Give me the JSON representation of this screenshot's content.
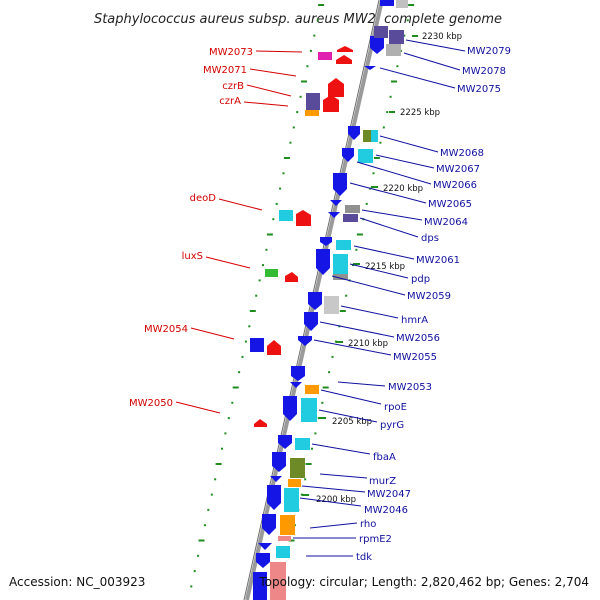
{
  "title": "Staphylococcus aureus subsp. aureus MW2, complete genome",
  "footer": {
    "accession": "Accession: NC_003923",
    "summary": "Topology: circular; Length: 2,820,462 bp; Genes: 2,704"
  },
  "colors": {
    "label_red": "#d40000",
    "label_blue": "#1010a0",
    "backbone": "#8c8c8c",
    "tick": "#1e8c1e",
    "feature_red": "#ee1111",
    "feature_blue": "#1515e6",
    "magenta": "#e020b0",
    "purple": "#5a4a9a",
    "orange": "#ff9900",
    "cyan": "#22cce0",
    "gray": "#909090",
    "olive": "#6e8a26",
    "green": "#33bb33",
    "pink": "#ee8888"
  },
  "kbp_markers": [
    "2230 kbp",
    "2225 kbp",
    "2220 kbp",
    "2215 kbp",
    "2210 kbp",
    "2205 kbp",
    "2200 kbp"
  ],
  "left_labels": [
    "MW2073",
    "MW2071",
    "czrB",
    "czrA",
    "deoD",
    "luxS",
    "MW2054",
    "MW2050"
  ],
  "right_labels": [
    "MW2079",
    "MW2078",
    "MW2075",
    "MW2068",
    "MW2067",
    "MW2066",
    "MW2065",
    "MW2064",
    "dps",
    "MW2061",
    "pdp",
    "MW2059",
    "hmrA",
    "MW2056",
    "MW2055",
    "MW2053",
    "rpoE",
    "pyrG",
    "fbaA",
    "murZ",
    "MW2047",
    "MW2046",
    "rho",
    "rpmE2",
    "tdk"
  ]
}
